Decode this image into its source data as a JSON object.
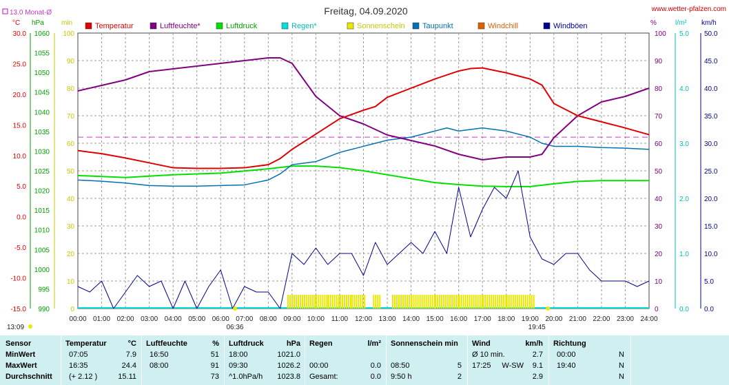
{
  "header": {
    "title": "Freitag, 04.09.2020",
    "site": "www.wetter-pfalzen.com",
    "month_avg": "13.0 Monat-Ø",
    "unit_c": "°C",
    "unit_hpa": "hPa",
    "unit_min": "min",
    "unit_pct": "%",
    "unit_lm2": "l/m²",
    "unit_kmh": "km/h"
  },
  "colors": {
    "temperatur": "#e00000",
    "luftfeuchte": "#800080",
    "luftdruck": "#00e000",
    "regen": "#00dddd",
    "sonnenschein": "#e8e800",
    "taupunkt": "#0070b0",
    "windchill": "#e06000",
    "windboeen": "#000090",
    "monat": "#cc33cc"
  },
  "legend": [
    {
      "key": "temperatur",
      "label": "Temperatur",
      "label_color": "#e00000"
    },
    {
      "key": "luftfeuchte",
      "label": "Luftfeuchte*",
      "label_color": "#800080"
    },
    {
      "key": "luftdruck",
      "label": "Luftdruck",
      "label_color": "#00a000"
    },
    {
      "key": "regen",
      "label": "Regen*",
      "label_color": "#00bbbb"
    },
    {
      "key": "sonnenschein",
      "label": "Sonnenschein",
      "label_color": "#c8c800"
    },
    {
      "key": "taupunkt",
      "label": "Taupunkt",
      "label_color": "#0070b0"
    },
    {
      "key": "windchill",
      "label": "Windchill",
      "label_color": "#e06000"
    },
    {
      "key": "windboeen",
      "label": "Windböen",
      "label_color": "#000090"
    }
  ],
  "axes": {
    "temp_ticks": [
      "30.0",
      "25.0",
      "20.0",
      "15.0",
      "10.0",
      "5.0",
      "0.0",
      "-5.0",
      "-10.0",
      "-15.0"
    ],
    "hpa_ticks": [
      "1060",
      "1055",
      "1050",
      "1045",
      "1040",
      "1035",
      "1030",
      "1025",
      "1020",
      "1015",
      "1010",
      "1005",
      "1000",
      "995",
      "990"
    ],
    "min_ticks": [
      "100",
      "90",
      "80",
      "70",
      "60",
      "50",
      "40",
      "30",
      "20",
      "10",
      "0"
    ],
    "pct_ticks": [
      "100",
      "90",
      "80",
      "70",
      "60",
      "50",
      "40",
      "30",
      "20",
      "10",
      "0"
    ],
    "lm2_ticks": [
      "5.0",
      "4.0",
      "3.0",
      "2.0",
      "1.0",
      "0.0"
    ],
    "kmh_ticks": [
      "50.0",
      "45.0",
      "40.0",
      "35.0",
      "30.0",
      "25.0",
      "20.0",
      "15.0",
      "10.0",
      "5.0",
      "0.0"
    ],
    "hour_labels": [
      "00:00",
      "01:00",
      "02:00",
      "03:00",
      "04:00",
      "05:00",
      "06:00",
      "07:00",
      "08:00",
      "09:00",
      "10:00",
      "11:00",
      "12:00",
      "13:00",
      "14:00",
      "15:00",
      "16:00",
      "17:00",
      "18:00",
      "19:00",
      "20:00",
      "21:00",
      "22:00",
      "23:00",
      "24:00"
    ]
  },
  "markers": {
    "sunrise": "06:36",
    "sunset": "19:45",
    "daylength": "13:09"
  },
  "chart_data": {
    "type": "line",
    "title": "Freitag, 04.09.2020",
    "x_range": [
      "00:00",
      "24:00"
    ],
    "month_avg_temp": 13.0,
    "temperatur": {
      "ylim": [
        -15,
        30
      ],
      "x": [
        0,
        1,
        2,
        3,
        4,
        5,
        6,
        7,
        8,
        8.5,
        9,
        10,
        11,
        12,
        12.5,
        13,
        14,
        15,
        16,
        16.5,
        17,
        18,
        19,
        19.5,
        20,
        21,
        22,
        23,
        24
      ],
      "y": [
        10.8,
        10.3,
        9.6,
        8.8,
        8.0,
        7.9,
        7.9,
        8.0,
        8.5,
        9.5,
        11.0,
        13.5,
        16.0,
        17.4,
        18.0,
        19.5,
        21.0,
        22.5,
        23.8,
        24.2,
        24.3,
        23.5,
        22.5,
        21.5,
        18.5,
        16.5,
        15.5,
        14.5,
        13.4
      ]
    },
    "luftfeuchte": {
      "ylim": [
        0,
        100
      ],
      "x": [
        0,
        1,
        2,
        3,
        4,
        5,
        6,
        7,
        8,
        8.5,
        9,
        10,
        11,
        12,
        13,
        14,
        15,
        16,
        17,
        18,
        19,
        19.5,
        20,
        21,
        22,
        23,
        24
      ],
      "y": [
        79,
        81,
        83,
        86,
        87,
        88,
        89,
        90,
        91,
        91,
        89,
        77,
        70,
        67,
        63,
        61,
        59,
        56,
        54,
        55,
        55,
        56,
        62,
        70,
        75,
        77,
        80
      ]
    },
    "luftdruck": {
      "ylim": [
        990,
        1060
      ],
      "x": [
        0,
        2,
        4,
        6,
        8,
        9,
        10,
        11,
        12,
        13,
        14,
        15,
        16,
        17,
        18,
        19,
        20,
        21,
        22,
        23,
        24
      ],
      "y": [
        1023.8,
        1023.3,
        1024.0,
        1024.4,
        1025.5,
        1026.2,
        1026.2,
        1025.8,
        1025.0,
        1024.0,
        1023.0,
        1022.0,
        1021.5,
        1021.1,
        1021.0,
        1021.0,
        1021.7,
        1022.3,
        1022.5,
        1022.5,
        1022.5
      ]
    },
    "taupunkt": {
      "ylim": [
        -15,
        30
      ],
      "x": [
        0,
        1,
        2,
        3,
        4,
        5,
        6,
        7,
        8,
        8.5,
        9,
        10,
        11,
        12,
        12.5,
        13,
        14,
        15,
        15.5,
        16,
        17,
        18,
        19,
        19.5,
        20,
        21,
        22,
        23,
        24
      ],
      "y": [
        6.0,
        5.8,
        5.5,
        5.1,
        5.0,
        5.0,
        5.1,
        5.2,
        6.0,
        7.0,
        8.5,
        9.0,
        10.5,
        11.5,
        12.0,
        12.5,
        13.0,
        14.0,
        14.5,
        14.0,
        14.5,
        14.0,
        13.0,
        12.0,
        11.5,
        11.5,
        11.3,
        11.2,
        11.0
      ]
    },
    "windboeen": {
      "ylim": [
        0,
        50
      ],
      "x": [
        0,
        0.5,
        1,
        1.5,
        2,
        2.5,
        3,
        3.5,
        4,
        4.5,
        5,
        5.5,
        6,
        6.5,
        7,
        7.5,
        8,
        8.5,
        9,
        9.5,
        10,
        10.5,
        11,
        11.5,
        12,
        12.5,
        13,
        13.5,
        14,
        14.5,
        15,
        15.5,
        16,
        16.5,
        17,
        17.5,
        18,
        18.5,
        19,
        19.5,
        20,
        20.5,
        21,
        21.5,
        22,
        22.5,
        23,
        23.5,
        24
      ],
      "y": [
        4,
        3,
        5,
        0,
        3,
        6,
        4,
        5,
        0,
        5,
        0,
        4,
        7,
        0,
        4,
        3,
        3,
        0,
        10,
        8,
        11,
        8,
        10,
        10,
        6,
        12,
        8,
        10,
        12,
        10,
        14,
        10,
        22,
        13,
        18,
        22,
        20,
        25,
        13,
        9,
        8,
        10,
        10,
        7,
        5,
        5,
        5,
        4,
        5
      ]
    },
    "sonnenschein_minutes": {
      "ylim": [
        0,
        100
      ],
      "x": [
        8.8,
        9.5,
        10,
        10.5,
        11,
        11.5,
        12.1,
        12.4,
        12.7,
        13.2,
        14,
        15,
        16,
        17,
        18,
        19.2
      ],
      "y": [
        5,
        5,
        5,
        5,
        5,
        5,
        0,
        5,
        0,
        5,
        5,
        5,
        5,
        5,
        5,
        0
      ]
    },
    "regen": {
      "ylim": [
        0,
        5
      ],
      "values": [
        0
      ]
    }
  },
  "stats": {
    "headers": {
      "sensor": "Sensor",
      "temperatur": "Temperatur",
      "temp_unit": "°C",
      "luftfeuchte": "Luftfeuchte",
      "feuchte_unit": "%",
      "luftdruck": "Luftdruck",
      "druck_unit": "hPa",
      "regen": "Regen",
      "regen_unit": "l/m²",
      "sonne": "Sonnenschein min",
      "wind": "Wind",
      "wind_unit": "km/h",
      "richtung": "Richtung"
    },
    "rows": [
      {
        "label": "MinWert",
        "t_time": "07:05",
        "t_val": "7.9",
        "h_time": "16:50",
        "h_val": "51",
        "p_time": "18:00",
        "p_val": "1021.0",
        "r_time": "",
        "r_val": "",
        "s_time": "",
        "s_val": "",
        "w_time": "Ø 10 min.",
        "w_dir": "",
        "w_val": "2.7",
        "d_time": "00:00",
        "d_dir": "N"
      },
      {
        "label": "MaxWert",
        "t_time": "16:35",
        "t_val": "24.4",
        "h_time": "08:00",
        "h_val": "91",
        "p_time": "09:30",
        "p_val": "1026.2",
        "r_time": "00:00",
        "r_val": "0.0",
        "s_time": "08:50",
        "s_val": "5",
        "w_time": "17:25",
        "w_dir": "W-SW",
        "w_val": "9.1",
        "d_time": "19:40",
        "d_dir": "N"
      },
      {
        "label": "Durchschnitt",
        "t_time": "(+ 2.12 )",
        "t_val": "15.11",
        "h_time": "",
        "h_val": "73",
        "p_time": "^1.0hPa/h",
        "p_val": "1023.8",
        "r_time": "Gesamt:",
        "r_val": "0.0",
        "s_time": "9:50 h",
        "s_val": "2",
        "w_time": "",
        "w_dir": "",
        "w_val": "2.9",
        "d_time": "",
        "d_dir": "N"
      }
    ]
  }
}
